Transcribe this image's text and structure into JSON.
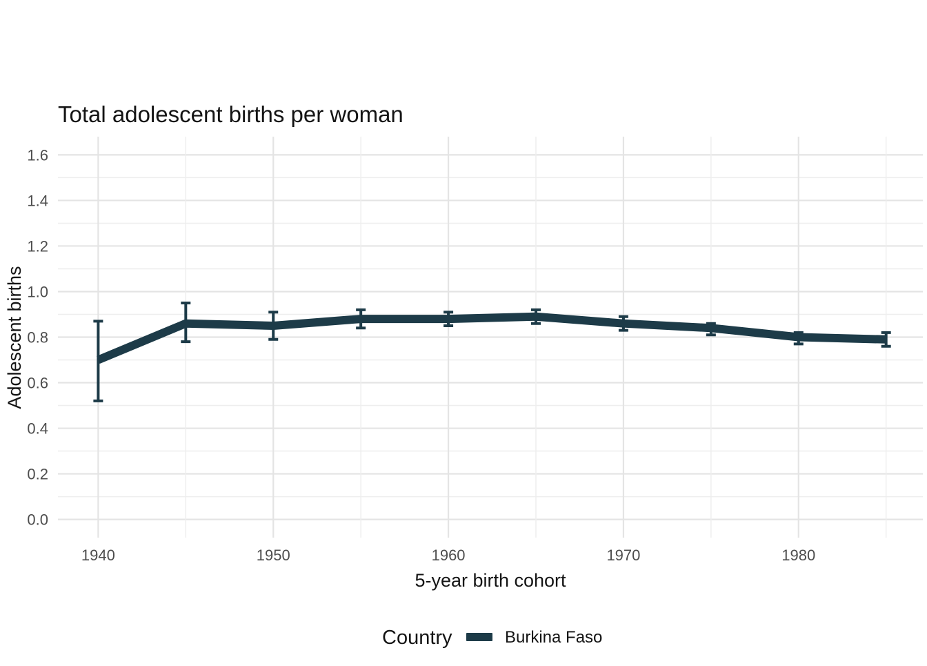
{
  "chart_data": {
    "type": "line",
    "title": "Total adolescent births per woman",
    "xlabel": "5-year birth cohort",
    "ylabel": "Adolescent births",
    "legend_title": "Country",
    "legend_position": "bottom",
    "grid": true,
    "x": [
      1940,
      1945,
      1950,
      1955,
      1960,
      1965,
      1970,
      1975,
      1980,
      1985
    ],
    "series": [
      {
        "name": "Burkina Faso",
        "color": "#1d3b48",
        "values": [
          0.7,
          0.86,
          0.85,
          0.88,
          0.88,
          0.89,
          0.86,
          0.84,
          0.8,
          0.79
        ],
        "lower": [
          0.52,
          0.78,
          0.79,
          0.84,
          0.85,
          0.86,
          0.83,
          0.81,
          0.77,
          0.76
        ],
        "upper": [
          0.87,
          0.95,
          0.91,
          0.92,
          0.91,
          0.92,
          0.89,
          0.86,
          0.82,
          0.82
        ]
      }
    ],
    "xticks": [
      1940,
      1950,
      1960,
      1970,
      1980
    ],
    "yticks": [
      0.0,
      0.2,
      0.4,
      0.6,
      0.8,
      1.0,
      1.2,
      1.4,
      1.6
    ],
    "xlim": [
      1937.7,
      1987.1
    ],
    "ylim": [
      -0.08,
      1.68
    ],
    "minor_x_step": 5,
    "minor_y_step": 0.1
  },
  "colors": {
    "line": "#1d3b48",
    "grid_major": "#e4e4e4",
    "grid_minor": "#eeeeee",
    "tick_label": "#4d4d4d",
    "text": "#141414",
    "background": "#ffffff"
  }
}
